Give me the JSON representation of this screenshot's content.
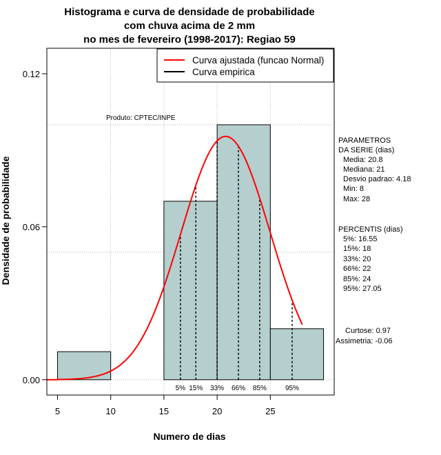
{
  "chart_data": {
    "type": "bar",
    "title_lines": [
      "Histograma e curva de densidade de probabilidade",
      "com chuva acima de 2 mm",
      "no mes de fevereiro (1998-2017): Regiao 59"
    ],
    "xlabel": "Numero de dias",
    "ylabel": "Densidade de probabilidade",
    "xlim": [
      4,
      31
    ],
    "ylim": [
      -0.006,
      0.13
    ],
    "x_ticks": [
      5,
      10,
      15,
      20,
      25
    ],
    "y_ticks": [
      0.0,
      0.06,
      0.12
    ],
    "y_tick_labels": [
      "0.00",
      "0.06",
      "0.12"
    ],
    "x_gridlines": [
      10,
      15,
      20,
      25
    ],
    "y_gridlines": [
      0.0,
      0.05,
      0.1
    ],
    "bins": [
      {
        "from": 5,
        "to": 10,
        "density": 0.011
      },
      {
        "from": 10,
        "to": 15,
        "density": 0.0
      },
      {
        "from": 15,
        "to": 20,
        "density": 0.07
      },
      {
        "from": 20,
        "to": 25,
        "density": 0.1
      },
      {
        "from": 25,
        "to": 30,
        "density": 0.02
      }
    ],
    "normal_curve": {
      "mean": 20.8,
      "sd": 4.18,
      "from": 5,
      "to": 28
    },
    "percentile_lines": [
      {
        "label": "5%",
        "x": 16.55
      },
      {
        "label": "15%",
        "x": 18
      },
      {
        "label": "33%",
        "x": 20
      },
      {
        "label": "66%",
        "x": 22
      },
      {
        "label": "85%",
        "x": 24
      },
      {
        "label": "95%",
        "x": 27.05
      }
    ],
    "legend": [
      {
        "label": "Curva ajustada (funcao Normal)",
        "color": "#ff0000"
      },
      {
        "label": "Curva empirica",
        "color": "#000000"
      }
    ],
    "colors": {
      "bar_fill": "#b5cece",
      "curve": "#ff0000",
      "grid": "#b0b0b0"
    },
    "product_label": "Produto: CPTEC/INPE",
    "parametros": {
      "header": [
        "PARAMETROS",
        "DA SERIE (dias)"
      ],
      "lines": [
        "Media: 20.8",
        "Mediana: 21",
        "Desvio padrao: 4.18",
        "Min: 8",
        "Max: 28"
      ]
    },
    "percentis": {
      "header": "PERCENTIS (dias)",
      "lines": [
        "5%: 16.55",
        "15%: 18",
        "33%: 20",
        "66%: 22",
        "85%: 24",
        "95%: 27.05"
      ]
    },
    "shape_stats": [
      "Curtose: 0.97",
      "Assimetria: -0.06"
    ]
  }
}
